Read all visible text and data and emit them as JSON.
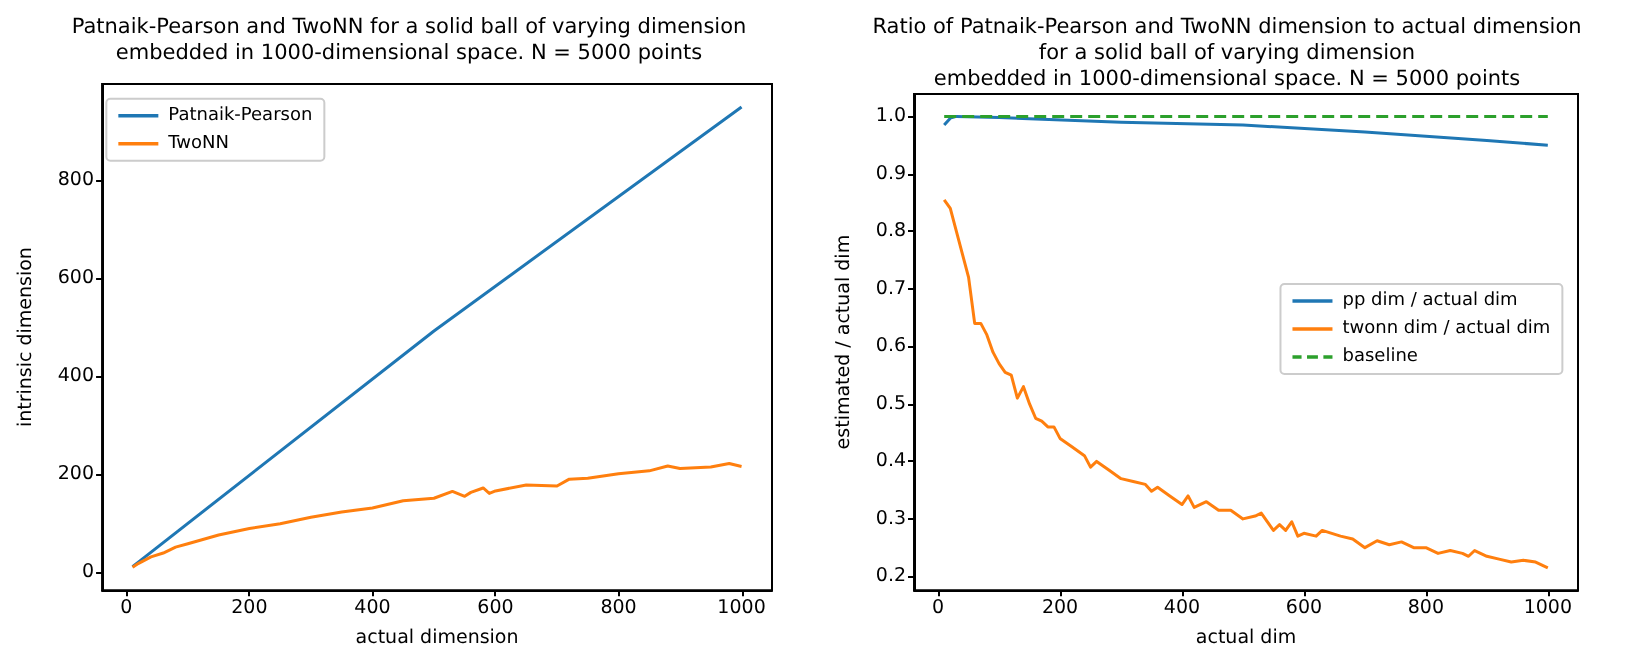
{
  "chart_data": [
    {
      "type": "line",
      "title": "Patnaik-Pearson and TwoNN for a solid ball of varying dimension\nembedded in 1000-dimensional space. N = 5000 points",
      "xlabel": "actual dimension",
      "ylabel": "intrinsic dimension",
      "xlim": [
        -39.5,
        1049.5
      ],
      "xticks": [
        0,
        200,
        400,
        600,
        800,
        1000
      ],
      "ylim": [
        -38,
        997
      ],
      "yticks": [
        0,
        200,
        400,
        600,
        800
      ],
      "grid": false,
      "legend": "top left",
      "marker": "none",
      "series": [
        {
          "name": "Patnaik-Pearson",
          "color": "#1f77b4",
          "x": [
            10,
            20,
            500,
            1000
          ],
          "values": [
            10,
            20,
            492,
            950
          ]
        },
        {
          "name": "TwoNN",
          "color": "#ff7f0e",
          "x": [
            10,
            20,
            40,
            60,
            80,
            100,
            150,
            200,
            250,
            300,
            350,
            400,
            450,
            500,
            530,
            550,
            560,
            580,
            590,
            600,
            650,
            700,
            720,
            750,
            800,
            850,
            880,
            900,
            950,
            980,
            1000
          ],
          "values": [
            9,
            17,
            30,
            38,
            50,
            57,
            75,
            88,
            98,
            111,
            122,
            130,
            145,
            150,
            164,
            154,
            162,
            171,
            160,
            165,
            177,
            175,
            189,
            191,
            200,
            206,
            216,
            211,
            214,
            221,
            215
          ]
        }
      ]
    },
    {
      "type": "line",
      "title": "Ratio of Patnaik-Pearson and TwoNN dimension to actual dimension\nfor a solid ball of varying dimension\nembedded in 1000-dimensional space. N = 5000 points",
      "xlabel": "actual dim",
      "ylabel": "estimated / actual dim",
      "xlim": [
        -39.5,
        1049.5
      ],
      "xticks": [
        0,
        200,
        400,
        600,
        800,
        1000
      ],
      "ylim": [
        0.176,
        1.039
      ],
      "yticks": [
        0.2,
        0.3,
        0.4,
        0.5,
        0.6,
        0.7,
        0.8,
        0.9,
        {
          "value": 1,
          "label": "1.0"
        }
      ],
      "grid": false,
      "legend": "right",
      "marker": "none",
      "series": [
        {
          "name": "pp dim / actual dim",
          "color": "#1f77b4",
          "x": [
            10,
            20,
            30,
            100,
            300,
            500,
            700,
            900,
            1000
          ],
          "values": [
            0.985,
            0.997,
            1.0,
            0.998,
            0.99,
            0.985,
            0.973,
            0.958,
            0.95
          ]
        },
        {
          "name": "twonn dim / actual dim",
          "color": "#ff7f0e",
          "x": [
            10,
            20,
            30,
            40,
            50,
            60,
            70,
            80,
            90,
            100,
            110,
            120,
            130,
            140,
            150,
            160,
            170,
            180,
            190,
            200,
            220,
            240,
            250,
            260,
            280,
            300,
            320,
            340,
            350,
            360,
            380,
            400,
            410,
            420,
            440,
            460,
            480,
            500,
            520,
            530,
            550,
            560,
            570,
            580,
            590,
            600,
            620,
            630,
            660,
            680,
            700,
            720,
            740,
            760,
            780,
            800,
            820,
            840,
            860,
            870,
            880,
            900,
            920,
            940,
            960,
            980,
            1000
          ],
          "values": [
            0.855,
            0.84,
            0.8,
            0.76,
            0.72,
            0.64,
            0.64,
            0.62,
            0.59,
            0.57,
            0.555,
            0.55,
            0.51,
            0.53,
            0.5,
            0.475,
            0.47,
            0.46,
            0.46,
            0.44,
            0.425,
            0.41,
            0.39,
            0.4,
            0.385,
            0.37,
            0.365,
            0.36,
            0.348,
            0.355,
            0.34,
            0.325,
            0.34,
            0.32,
            0.33,
            0.315,
            0.315,
            0.3,
            0.305,
            0.31,
            0.28,
            0.29,
            0.28,
            0.295,
            0.27,
            0.275,
            0.27,
            0.28,
            0.27,
            0.265,
            0.25,
            0.262,
            0.255,
            0.26,
            0.25,
            0.25,
            0.24,
            0.245,
            0.24,
            0.235,
            0.245,
            0.235,
            0.23,
            0.225,
            0.228,
            0.225,
            0.215
          ]
        },
        {
          "name": "baseline",
          "color": "#2ca02c",
          "line_style": "dashed",
          "x": [
            10,
            1000
          ],
          "values": [
            1,
            1
          ]
        }
      ]
    }
  ]
}
